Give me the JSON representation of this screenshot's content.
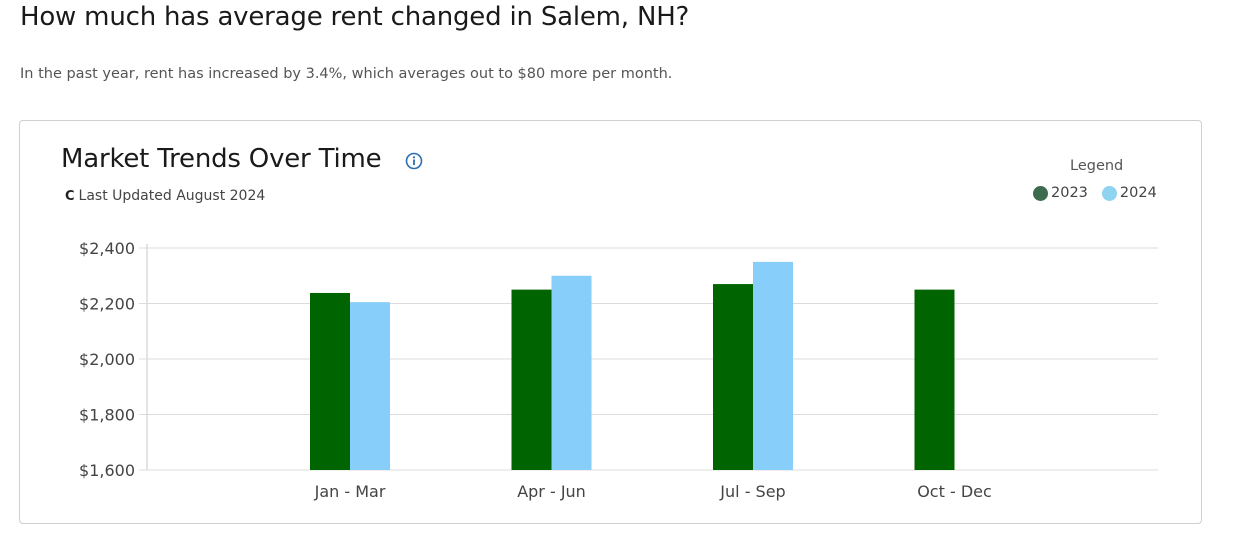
{
  "page": {
    "heading": "How much has average rent changed in Salem, NH?",
    "summary": "In the past year, rent has increased by 3.4%, which averages out to $80 more per month."
  },
  "card": {
    "title": "Market Trends Over Time",
    "updated": "Last Updated August 2024",
    "legend_title": "Legend"
  },
  "chart_data": {
    "type": "bar",
    "categories": [
      "Jan - Mar",
      "Apr - Jun",
      "Jul - Sep",
      "Oct - Dec"
    ],
    "series": [
      {
        "name": "2023",
        "color": "#006400",
        "values": [
          2238,
          2250,
          2270,
          2250
        ]
      },
      {
        "name": "2024",
        "color": "#87CEFA",
        "values": [
          2205,
          2300,
          2350,
          null
        ]
      }
    ],
    "y_ticks": [
      "$1,600",
      "$1,800",
      "$2,000",
      "$2,200",
      "$2,400"
    ],
    "y_tick_values": [
      1600,
      1800,
      2000,
      2200,
      2400
    ],
    "ylim": [
      1600,
      2400
    ],
    "grid": true,
    "legend_position": "top-right",
    "legend_swatch_colors": [
      "#3e6b4e",
      "#8ed3ef"
    ]
  }
}
